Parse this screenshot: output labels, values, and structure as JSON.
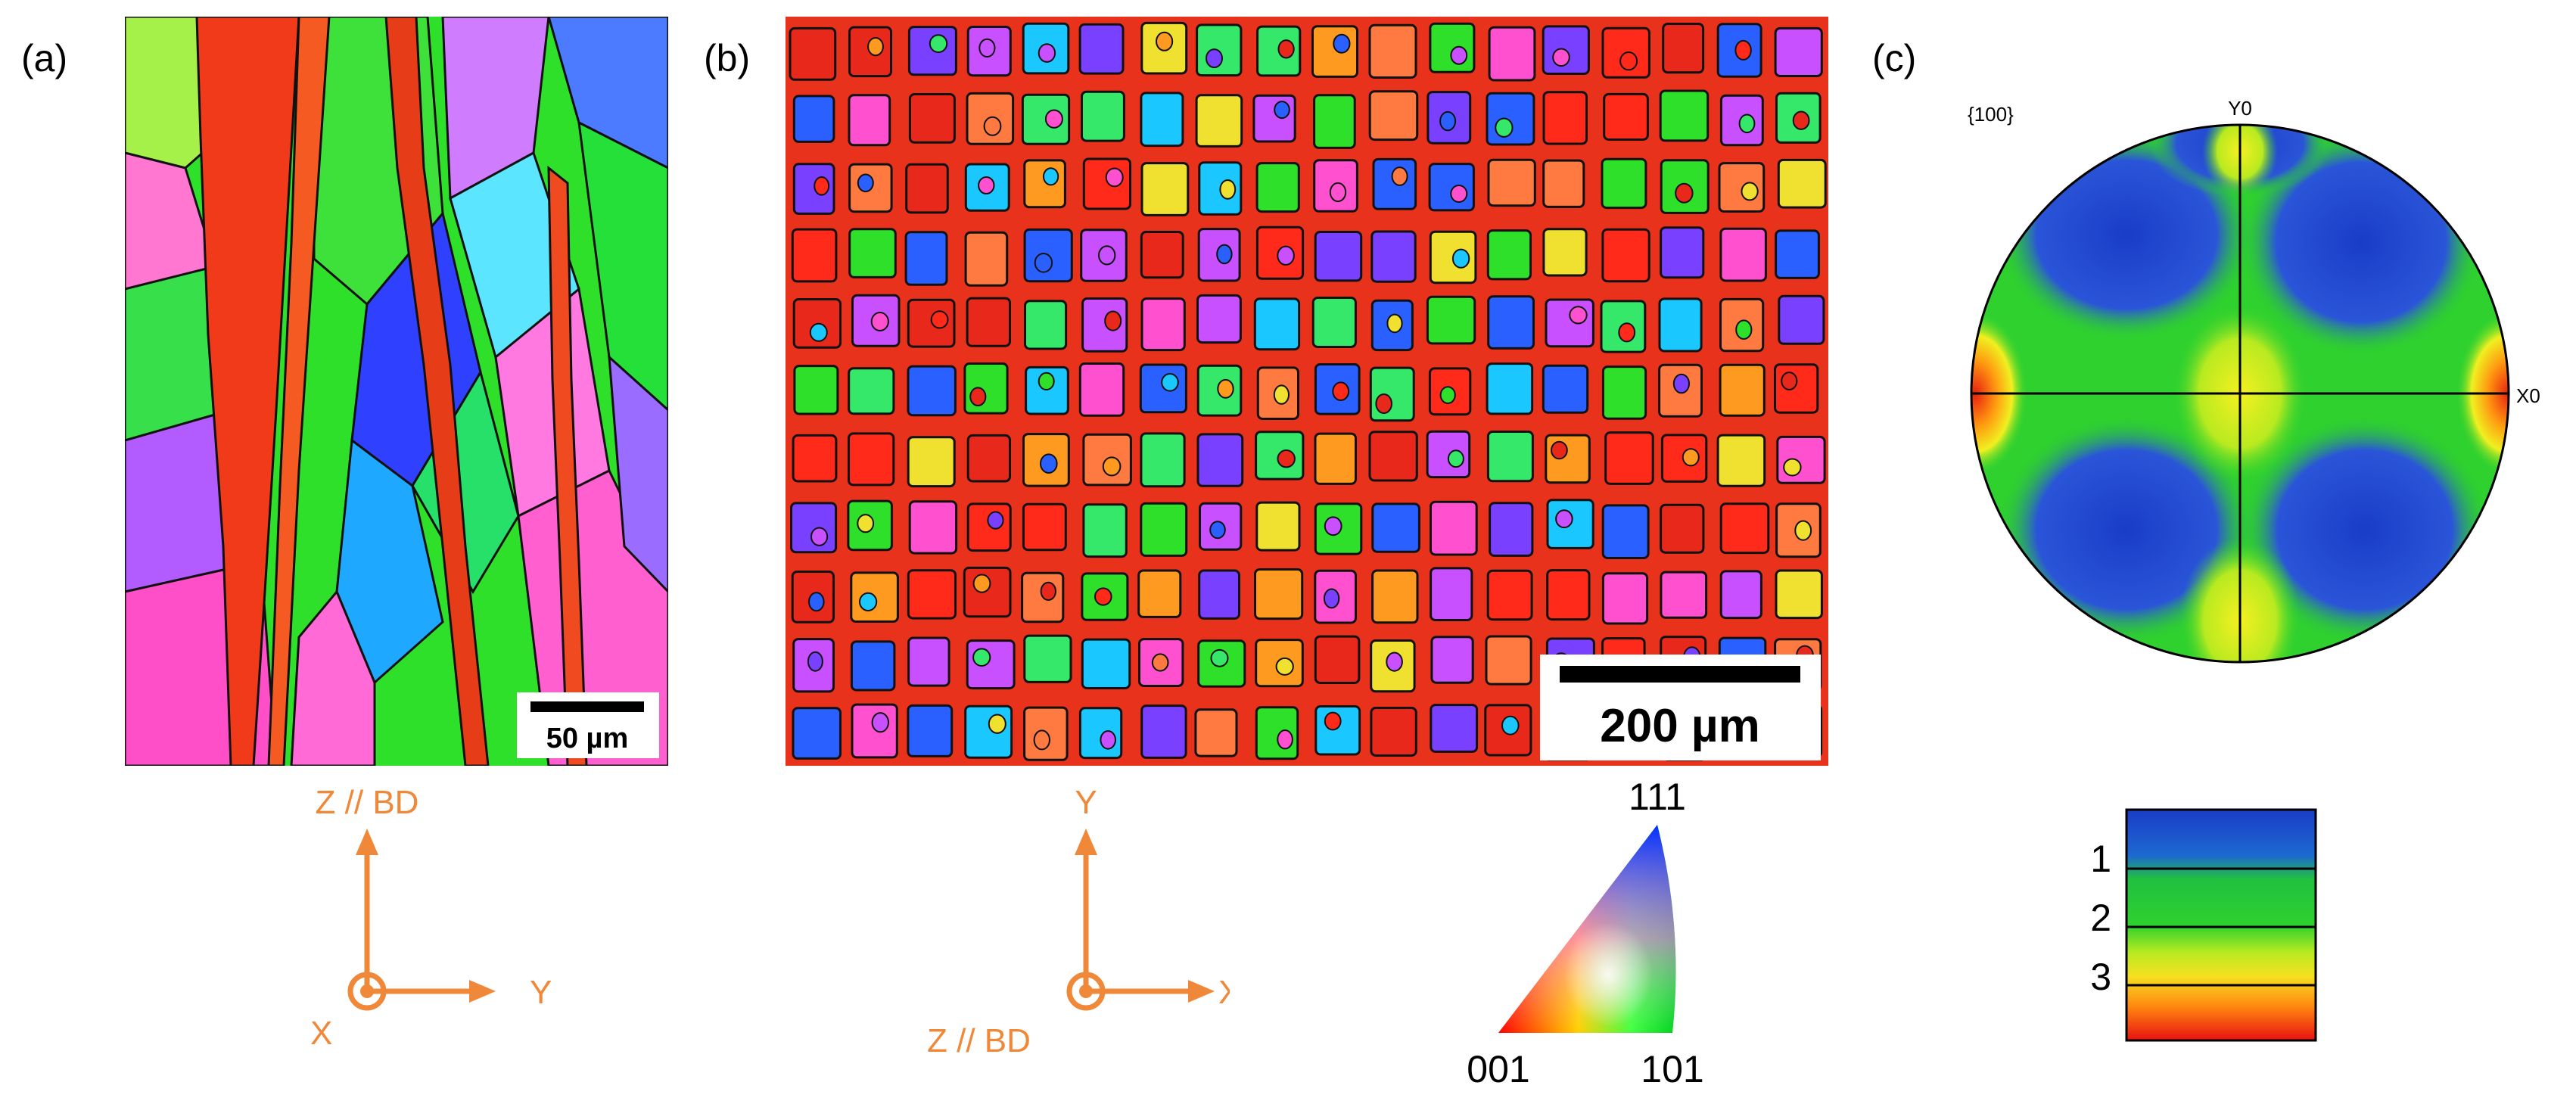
{
  "panels": {
    "a": {
      "label": "(a)",
      "scale_bar": "50 µm",
      "axes": {
        "vertical": "Z // BD",
        "horizontal": "Y",
        "out_of_plane": "X"
      }
    },
    "b": {
      "label": "(b)",
      "scale_bar": "200 µm",
      "axes": {
        "vertical": "Y",
        "horizontal": "X",
        "out_of_plane": "Z // BD"
      },
      "ipf_key": {
        "top": "111",
        "bottom_left": "001",
        "bottom_right": "101"
      }
    },
    "c": {
      "label": "(c)",
      "pole_figure": {
        "family": "{100}",
        "y_axis": "Y0",
        "x_axis": "X0"
      },
      "intensity_legend": {
        "ticks": [
          "1",
          "2",
          "3"
        ]
      }
    }
  },
  "colors": {
    "axis_orange": "#f0883a",
    "ipf_red": "#ff0000",
    "ipf_green": "#00e000",
    "ipf_blue": "#0040ff",
    "pf_low": "#1a3cc8",
    "pf_mid": "#2ed12e",
    "pf_high": "#e82010"
  }
}
